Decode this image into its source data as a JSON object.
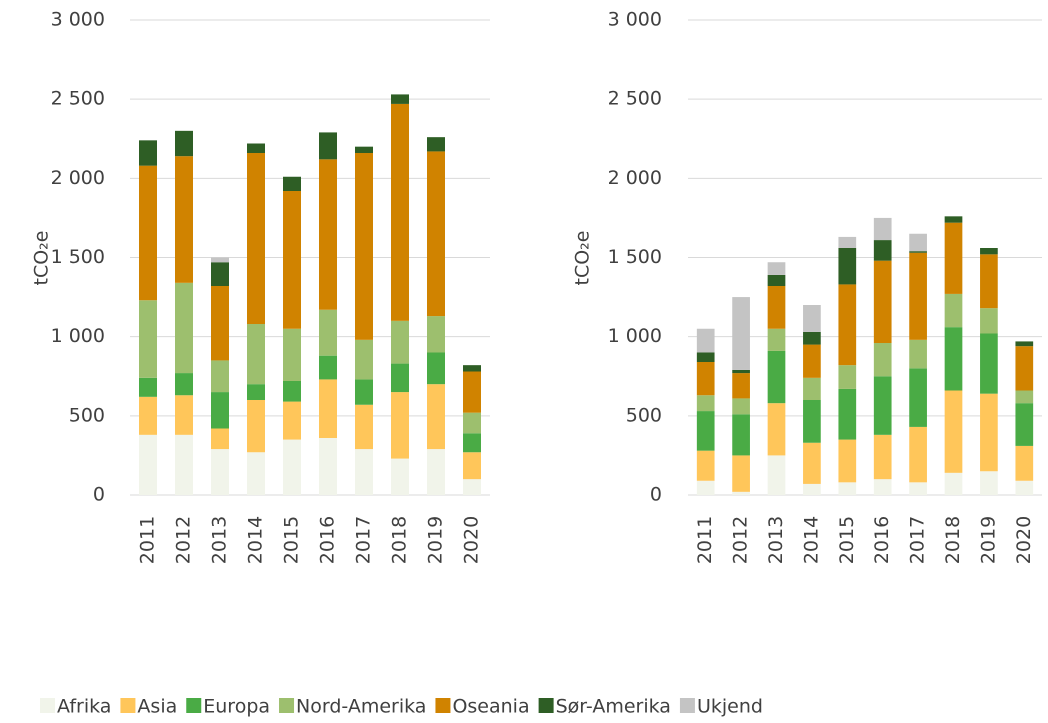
{
  "chart_data": [
    {
      "type": "stacked_bar",
      "ylabel": "tCO₂e",
      "categories": [
        "2011",
        "2012",
        "2013",
        "2014",
        "2015",
        "2016",
        "2017",
        "2018",
        "2019",
        "2020"
      ],
      "ylim": [
        0,
        3000
      ],
      "yticks": [
        0,
        500,
        {
          "value": 1000,
          "label": "1 000"
        },
        {
          "value": 1500,
          "label": "1 500"
        },
        {
          "value": 2000,
          "label": "2 000"
        },
        {
          "value": 2500,
          "label": "2 500"
        },
        {
          "value": 3000,
          "label": "3 000"
        }
      ],
      "grid": true,
      "series": [
        {
          "name": "Afrika",
          "color": "#f1f4ea",
          "values": [
            380,
            380,
            290,
            270,
            350,
            360,
            290,
            230,
            290,
            100
          ]
        },
        {
          "name": "Asia",
          "color": "#ffc65a",
          "values": [
            240,
            250,
            130,
            330,
            240,
            370,
            280,
            420,
            410,
            170
          ]
        },
        {
          "name": "Europa",
          "color": "#4aab45",
          "values": [
            120,
            140,
            230,
            100,
            130,
            150,
            160,
            180,
            200,
            120
          ]
        },
        {
          "name": "Nord-Amerika",
          "color": "#9dbf6e",
          "values": [
            490,
            570,
            200,
            380,
            330,
            290,
            250,
            270,
            230,
            130
          ]
        },
        {
          "name": "Oseania",
          "color": "#d08300",
          "values": [
            850,
            800,
            470,
            1080,
            870,
            950,
            1180,
            1370,
            1040,
            260
          ]
        },
        {
          "name": "Sør-Amerika",
          "color": "#2e5e25",
          "values": [
            160,
            160,
            150,
            60,
            90,
            170,
            40,
            60,
            90,
            40
          ]
        },
        {
          "name": "Ukjend",
          "color": "#c4c4c4",
          "values": [
            0,
            0,
            30,
            0,
            0,
            0,
            0,
            0,
            0,
            0
          ]
        }
      ]
    },
    {
      "type": "stacked_bar",
      "ylabel": "tCO₂e",
      "categories": [
        "2011",
        "2012",
        "2013",
        "2014",
        "2015",
        "2016",
        "2017",
        "2018",
        "2019",
        "2020"
      ],
      "ylim": [
        0,
        3000
      ],
      "yticks": [
        0,
        500,
        {
          "value": 1000,
          "label": "1 000"
        },
        {
          "value": 1500,
          "label": "1 500"
        },
        {
          "value": 2000,
          "label": "2 000"
        },
        {
          "value": 2500,
          "label": "2 500"
        },
        {
          "value": 3000,
          "label": "3 000"
        }
      ],
      "grid": true,
      "series": [
        {
          "name": "Afrika",
          "color": "#f1f4ea",
          "values": [
            90,
            20,
            250,
            70,
            80,
            100,
            80,
            140,
            150,
            90
          ]
        },
        {
          "name": "Asia",
          "color": "#ffc65a",
          "values": [
            190,
            230,
            330,
            260,
            270,
            280,
            350,
            520,
            490,
            220
          ]
        },
        {
          "name": "Europa",
          "color": "#4aab45",
          "values": [
            250,
            260,
            330,
            270,
            320,
            370,
            370,
            400,
            380,
            270
          ]
        },
        {
          "name": "Nord-Amerika",
          "color": "#9dbf6e",
          "values": [
            100,
            100,
            140,
            140,
            150,
            210,
            180,
            210,
            160,
            80
          ]
        },
        {
          "name": "Oseania",
          "color": "#d08300",
          "values": [
            210,
            160,
            270,
            210,
            510,
            520,
            550,
            450,
            340,
            280
          ]
        },
        {
          "name": "Sør-Amerika",
          "color": "#2e5e25",
          "values": [
            60,
            20,
            70,
            80,
            230,
            130,
            10,
            40,
            40,
            30
          ]
        },
        {
          "name": "Ukjend",
          "color": "#c4c4c4",
          "values": [
            150,
            460,
            80,
            170,
            70,
            140,
            110,
            0,
            0,
            0
          ]
        }
      ]
    }
  ]
}
